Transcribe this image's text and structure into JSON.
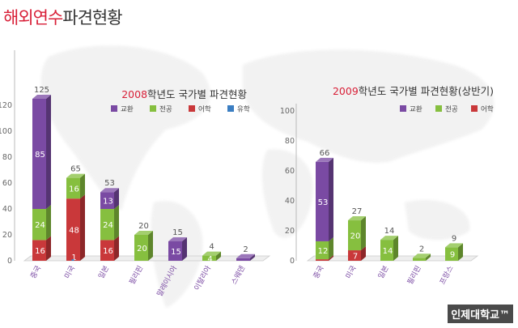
{
  "page_title": {
    "accent": "해외연수",
    "rest": "파견현황"
  },
  "watermark": "인제대학교™",
  "colors": {
    "교환": "#7a4aa3",
    "전공": "#86bf3f",
    "어학": "#c9383a",
    "유학": "#3b7ec2",
    "title_accent": "#d81f37"
  },
  "chart_data": [
    {
      "type": "bar",
      "stacked": true,
      "title_year": "2008",
      "title_rest": "학년도 국가별 파견현황",
      "ylim": [
        0,
        130
      ],
      "yticks": [
        0,
        20,
        40,
        60,
        80,
        100,
        120
      ],
      "grid": false,
      "legend_position": "top",
      "categories": [
        "중국",
        "미국",
        "일본",
        "필리핀",
        "말레이시아",
        "이탈리아",
        "스웨덴"
      ],
      "totals": [
        125,
        65,
        53,
        20,
        15,
        4,
        2
      ],
      "series": [
        {
          "name": "교환",
          "values": [
            85,
            0,
            13,
            0,
            15,
            0,
            2
          ]
        },
        {
          "name": "전공",
          "values": [
            24,
            16,
            24,
            20,
            0,
            4,
            0
          ]
        },
        {
          "name": "어학",
          "values": [
            16,
            48,
            16,
            0,
            0,
            0,
            0
          ]
        },
        {
          "name": "유학",
          "values": [
            0,
            1,
            0,
            0,
            0,
            0,
            0
          ]
        }
      ]
    },
    {
      "type": "bar",
      "stacked": true,
      "title_year": "2009",
      "title_rest": "학년도 국가별 파견현황(상반기)",
      "ylim": [
        0,
        100
      ],
      "yticks": [
        0,
        20,
        40,
        60,
        80,
        100
      ],
      "grid": false,
      "legend_position": "top",
      "categories": [
        "중국",
        "미국",
        "일본",
        "필리핀",
        "프랑스"
      ],
      "totals": [
        66,
        27,
        14,
        2,
        9
      ],
      "series": [
        {
          "name": "교환",
          "values": [
            53,
            0,
            0,
            0,
            0
          ]
        },
        {
          "name": "전공",
          "values": [
            12,
            20,
            14,
            2,
            9
          ]
        },
        {
          "name": "어학",
          "values": [
            1,
            7,
            0,
            0,
            0
          ]
        }
      ]
    }
  ]
}
